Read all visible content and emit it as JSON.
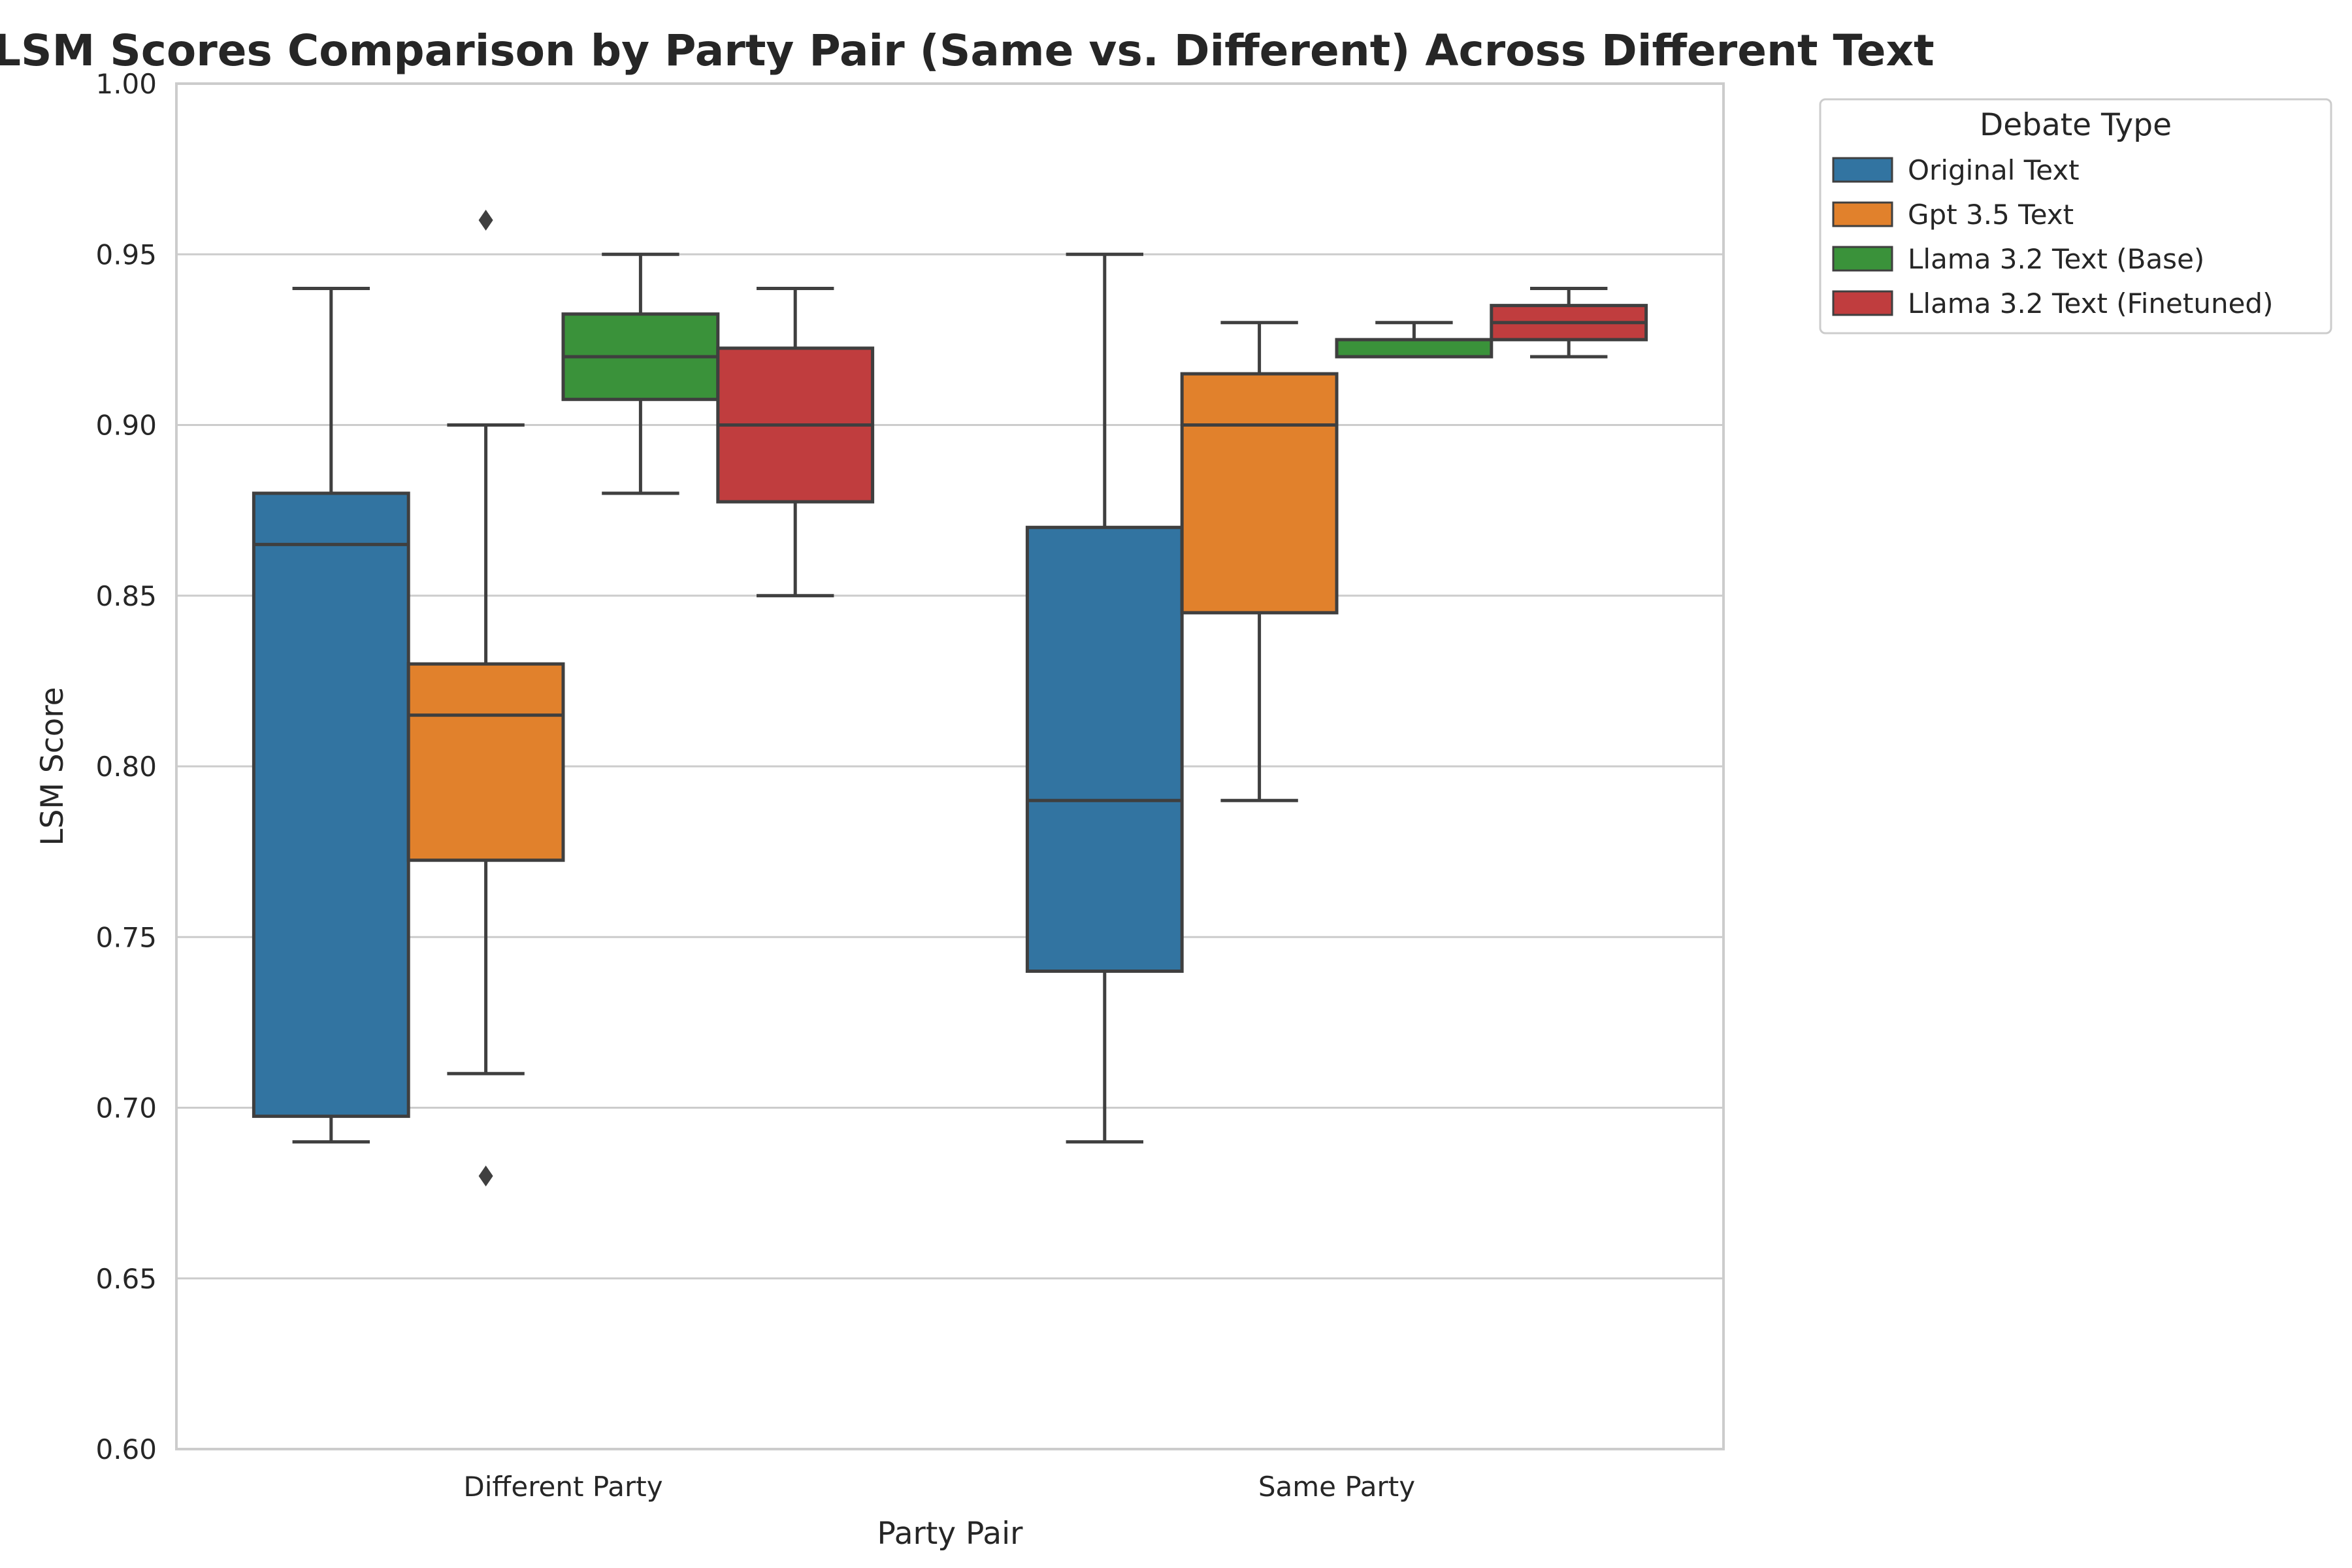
{
  "chart_data": {
    "type": "box",
    "title": "LSM Scores Comparison by Party Pair (Same vs. Different) Across Different Text",
    "xlabel": "Party Pair",
    "ylabel": "LSM Score",
    "ylim": [
      0.6,
      1.0
    ],
    "y_ticks": [
      "0.60",
      "0.65",
      "0.70",
      "0.75",
      "0.80",
      "0.85",
      "0.90",
      "0.95",
      "1.00"
    ],
    "y_tick_values": [
      0.6,
      0.65,
      0.7,
      0.75,
      0.8,
      0.85,
      0.9,
      0.95,
      1.0
    ],
    "grid": "horizontal",
    "categories": [
      "Different Party",
      "Same Party"
    ],
    "legend": {
      "title": "Debate Type",
      "placement": "outside-top-right"
    },
    "series": [
      {
        "name": "Original Text",
        "color": "#3274a1",
        "boxes": [
          {
            "whisker_low": 0.69,
            "q1": 0.6975,
            "median": 0.865,
            "q3": 0.88,
            "whisker_high": 0.94,
            "outliers": []
          },
          {
            "whisker_low": 0.69,
            "q1": 0.74,
            "median": 0.79,
            "q3": 0.87,
            "whisker_high": 0.95,
            "outliers": []
          }
        ]
      },
      {
        "name": "Gpt 3.5 Text",
        "color": "#e1812c",
        "boxes": [
          {
            "whisker_low": 0.71,
            "q1": 0.7725,
            "median": 0.815,
            "q3": 0.83,
            "whisker_high": 0.9,
            "outliers": [
              0.68,
              0.96
            ]
          },
          {
            "whisker_low": 0.79,
            "q1": 0.845,
            "median": 0.9,
            "q3": 0.915,
            "whisker_high": 0.93,
            "outliers": []
          }
        ]
      },
      {
        "name": "Llama 3.2 Text (Base)",
        "color": "#3a923a",
        "boxes": [
          {
            "whisker_low": 0.88,
            "q1": 0.9075,
            "median": 0.92,
            "q3": 0.9325,
            "whisker_high": 0.95,
            "outliers": []
          },
          {
            "whisker_low": 0.92,
            "q1": 0.92,
            "median": 0.92,
            "q3": 0.925,
            "whisker_high": 0.93,
            "outliers": []
          }
        ]
      },
      {
        "name": "Llama 3.2 Text (Finetuned)",
        "color": "#c03d3e",
        "boxes": [
          {
            "whisker_low": 0.85,
            "q1": 0.8775,
            "median": 0.9,
            "q3": 0.9225,
            "whisker_high": 0.94,
            "outliers": []
          },
          {
            "whisker_low": 0.92,
            "q1": 0.925,
            "median": 0.93,
            "q3": 0.935,
            "whisker_high": 0.94,
            "outliers": []
          }
        ]
      }
    ]
  }
}
